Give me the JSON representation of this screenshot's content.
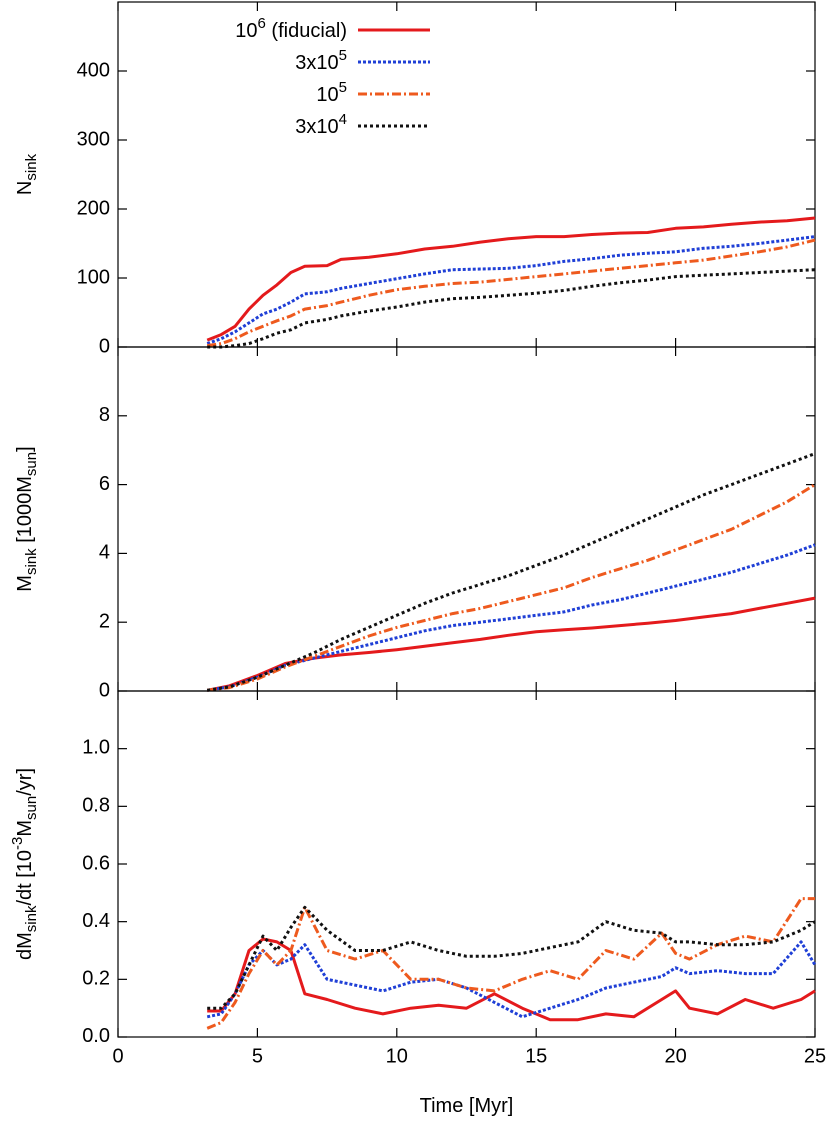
{
  "chart_data": [
    {
      "type": "line",
      "ylabel": "N_{sink}",
      "ylim": [
        0,
        500
      ],
      "yticks": [
        0,
        100,
        200,
        300,
        400
      ],
      "xlim": [
        0,
        25
      ],
      "xticks": [
        0,
        5,
        10,
        15,
        20,
        25
      ],
      "legend": "upper left",
      "x": [
        3.2,
        3.7,
        4.2,
        4.7,
        5.2,
        5.7,
        6.2,
        6.7,
        7.5,
        8,
        9,
        10,
        11,
        12,
        13,
        14,
        15,
        16,
        17,
        18,
        19,
        20,
        21,
        22,
        23,
        24,
        25
      ],
      "series": [
        {
          "name": "10^{6} (fiducial)",
          "color": "#e41a1c",
          "values": [
            10,
            18,
            30,
            55,
            75,
            90,
            108,
            117,
            118,
            127,
            130,
            135,
            142,
            146,
            152,
            157,
            160,
            160,
            163,
            165,
            166,
            172,
            174,
            178,
            181,
            183,
            187
          ]
        },
        {
          "name": "3x10^{5}",
          "color": "#1f3fd6",
          "values": [
            5,
            12,
            22,
            35,
            48,
            55,
            65,
            77,
            80,
            85,
            92,
            99,
            106,
            112,
            113,
            114,
            118,
            124,
            128,
            133,
            136,
            138,
            143,
            146,
            150,
            155,
            160
          ]
        },
        {
          "name": "10^{5}",
          "color": "#ee5a1e",
          "values": [
            2,
            5,
            12,
            22,
            30,
            38,
            45,
            55,
            60,
            65,
            75,
            83,
            88,
            92,
            94,
            98,
            102,
            106,
            110,
            114,
            118,
            122,
            126,
            132,
            138,
            145,
            155
          ]
        },
        {
          "name": "3x10^{4}",
          "color": "#111111",
          "values": [
            0,
            0,
            2,
            5,
            12,
            20,
            25,
            35,
            40,
            45,
            52,
            58,
            65,
            70,
            72,
            75,
            78,
            82,
            88,
            93,
            97,
            102,
            104,
            106,
            108,
            110,
            112
          ]
        }
      ]
    },
    {
      "type": "line",
      "ylabel": "M_{sink} [1000M_{sun}]",
      "ylim": [
        0,
        10
      ],
      "yticks": [
        0,
        2,
        4,
        6,
        8
      ],
      "xlim": [
        0,
        25
      ],
      "xticks": [
        0,
        5,
        10,
        15,
        20,
        25
      ],
      "x": [
        3.2,
        4,
        5,
        6,
        7,
        8,
        9,
        10,
        11,
        12,
        13,
        14,
        15,
        16,
        17,
        18,
        19,
        20,
        21,
        22,
        23,
        24,
        25
      ],
      "series": [
        {
          "color": "#e41a1c",
          "values": [
            0.02,
            0.15,
            0.45,
            0.8,
            0.95,
            1.05,
            1.12,
            1.2,
            1.3,
            1.4,
            1.5,
            1.62,
            1.72,
            1.78,
            1.83,
            1.9,
            1.97,
            2.05,
            2.15,
            2.25,
            2.4,
            2.55,
            2.7
          ]
        },
        {
          "color": "#1f3fd6",
          "values": [
            0.02,
            0.12,
            0.4,
            0.75,
            0.95,
            1.15,
            1.35,
            1.55,
            1.75,
            1.9,
            2.0,
            2.1,
            2.2,
            2.3,
            2.5,
            2.65,
            2.85,
            3.05,
            3.25,
            3.45,
            3.7,
            3.95,
            4.25
          ]
        },
        {
          "color": "#ee5a1e",
          "values": [
            0.02,
            0.1,
            0.35,
            0.7,
            1.0,
            1.3,
            1.6,
            1.85,
            2.05,
            2.25,
            2.4,
            2.6,
            2.8,
            3.0,
            3.3,
            3.55,
            3.8,
            4.1,
            4.4,
            4.7,
            5.1,
            5.5,
            6.0
          ]
        },
        {
          "color": "#111111",
          "values": [
            0.02,
            0.12,
            0.4,
            0.75,
            1.1,
            1.5,
            1.85,
            2.2,
            2.55,
            2.85,
            3.1,
            3.35,
            3.65,
            3.95,
            4.3,
            4.65,
            5.0,
            5.35,
            5.7,
            6.0,
            6.3,
            6.6,
            6.9
          ]
        }
      ]
    },
    {
      "type": "line",
      "ylabel": "dM_{sink}/dt [10^{-3}M_{sun}/yr]",
      "xlabel": "Time [Myr]",
      "ylim": [
        0,
        1.2
      ],
      "yticks": [
        {
          "value": 0,
          "label": "0.0"
        },
        0.2,
        0.4,
        0.6,
        0.8,
        {
          "value": 1,
          "label": "1.0"
        }
      ],
      "xlim": [
        0,
        25
      ],
      "xticks": [
        0,
        5,
        10,
        15,
        20,
        25
      ],
      "xticklabels": true,
      "x": [
        3.2,
        3.7,
        4.2,
        4.7,
        5.2,
        5.7,
        6.2,
        6.7,
        7.5,
        8.5,
        9.5,
        10.5,
        11.5,
        12.5,
        13.5,
        14.5,
        15.5,
        16.5,
        17.5,
        18.5,
        19.5,
        20,
        20.5,
        21.5,
        22.5,
        23.5,
        24.5,
        25
      ],
      "series": [
        {
          "color": "#e41a1c",
          "values": [
            0.09,
            0.09,
            0.15,
            0.3,
            0.34,
            0.33,
            0.3,
            0.15,
            0.13,
            0.1,
            0.08,
            0.1,
            0.11,
            0.1,
            0.15,
            0.1,
            0.06,
            0.06,
            0.08,
            0.07,
            0.13,
            0.16,
            0.1,
            0.08,
            0.13,
            0.1,
            0.13,
            0.16
          ]
        },
        {
          "color": "#1f3fd6",
          "values": [
            0.07,
            0.08,
            0.15,
            0.25,
            0.3,
            0.25,
            0.27,
            0.32,
            0.2,
            0.18,
            0.16,
            0.19,
            0.2,
            0.17,
            0.12,
            0.07,
            0.1,
            0.13,
            0.17,
            0.19,
            0.21,
            0.24,
            0.22,
            0.23,
            0.22,
            0.22,
            0.33,
            0.25
          ]
        },
        {
          "color": "#ee5a1e",
          "values": [
            0.03,
            0.05,
            0.12,
            0.22,
            0.3,
            0.25,
            0.3,
            0.45,
            0.3,
            0.27,
            0.3,
            0.2,
            0.2,
            0.17,
            0.16,
            0.2,
            0.23,
            0.2,
            0.3,
            0.27,
            0.36,
            0.29,
            0.27,
            0.32,
            0.35,
            0.33,
            0.48,
            0.48
          ]
        },
        {
          "color": "#111111",
          "values": [
            0.1,
            0.1,
            0.15,
            0.25,
            0.35,
            0.3,
            0.38,
            0.45,
            0.37,
            0.3,
            0.3,
            0.33,
            0.3,
            0.28,
            0.28,
            0.29,
            0.31,
            0.33,
            0.4,
            0.37,
            0.36,
            0.33,
            0.33,
            0.32,
            0.32,
            0.33,
            0.37,
            0.4
          ]
        }
      ]
    }
  ]
}
